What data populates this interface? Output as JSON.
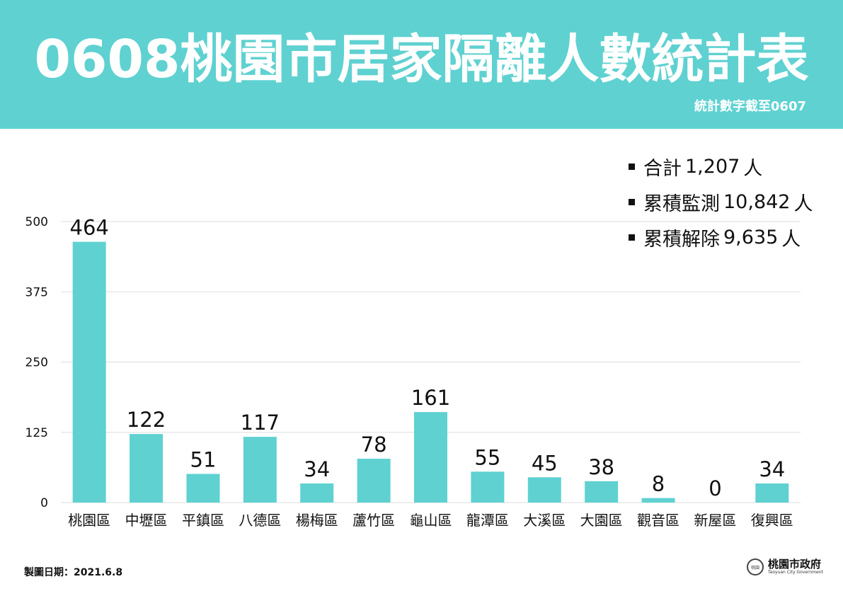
{
  "header": {
    "title": "0608桃園市居家隔離人數統計表",
    "subtitle": "統計數字截至0607"
  },
  "summary": [
    {
      "label": "合計",
      "value": "1,207",
      "unit": "人"
    },
    {
      "label": "累積監測",
      "value": "10,842",
      "unit": "人"
    },
    {
      "label": "累積解除",
      "value": "9,635",
      "unit": "人"
    }
  ],
  "chart_data": {
    "type": "bar",
    "title": "",
    "xlabel": "",
    "ylabel": "",
    "categories": [
      "桃園區",
      "中壢區",
      "平鎮區",
      "八德區",
      "楊梅區",
      "蘆竹區",
      "龜山區",
      "龍潭區",
      "大溪區",
      "大園區",
      "觀音區",
      "新屋區",
      "復興區"
    ],
    "values": [
      464,
      122,
      51,
      117,
      34,
      78,
      161,
      55,
      45,
      38,
      8,
      0,
      34
    ],
    "ylim": [
      0,
      500
    ],
    "yticks": [
      0,
      125,
      250,
      375,
      500
    ],
    "grid": true,
    "data_labels": true,
    "bar_color": "#5fd1d1"
  },
  "footer": {
    "date_label": "製圖日期：2021.6.8",
    "logo_name": "桃園市政府",
    "logo_en": "Taoyuan City Government",
    "seal_text": "桃園"
  },
  "colors": {
    "header_bg": "#5fd1d1",
    "bar": "#5fd1d1",
    "grid": "#dddddd",
    "text": "#111111"
  }
}
